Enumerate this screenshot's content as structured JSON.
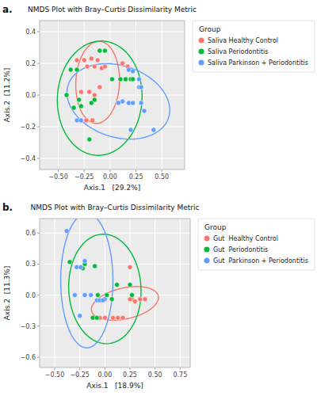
{
  "chart_data": [
    {
      "type": "scatter",
      "title": "NMDS Plot with Bray–Curtis Dissimilarity Metric",
      "annotation": "a.",
      "xlabel": "Axis.1   [29.2%]",
      "ylabel": "Axis.2  [11.2%]",
      "xlim": [
        -0.68,
        0.72
      ],
      "ylim": [
        -0.47,
        0.47
      ],
      "xticks": [
        {
          "value": -0.5,
          "label": "−0.50"
        },
        {
          "value": -0.25,
          "label": "−0.25"
        },
        {
          "value": 0.0,
          "label": "0.00"
        },
        {
          "value": 0.25,
          "label": "0.25"
        },
        {
          "value": 0.5,
          "label": "0.50"
        }
      ],
      "yticks": [
        {
          "value": -0.4,
          "label": "−0.4"
        },
        {
          "value": -0.2,
          "label": "−0.2"
        },
        {
          "value": 0.0,
          "label": "0.0"
        },
        {
          "value": 0.2,
          "label": "0.2"
        },
        {
          "value": 0.4,
          "label": "0.4"
        }
      ],
      "grid": true,
      "legend": "right",
      "legend_title": "Group",
      "series": [
        {
          "name": "Saliva Healthy Control",
          "color": "#F8766D",
          "x": [
            -0.32,
            -0.25,
            -0.18,
            -0.12,
            -0.22,
            -0.15,
            -0.08,
            -0.05,
            -0.28,
            -0.2,
            -0.15,
            -0.1,
            -0.17,
            -0.23,
            0.12,
            0.17
          ],
          "values": [
            0.22,
            0.22,
            0.23,
            0.22,
            0.18,
            0.18,
            0.17,
            0.18,
            0.02,
            0.02,
            0.0,
            0.05,
            -0.16,
            -0.16,
            0.2,
            0.18
          ],
          "ellipse": {
            "cx": -0.12,
            "cy": 0.08,
            "width": 0.42,
            "height": 0.52,
            "angle": -8
          }
        },
        {
          "name": "Saliva Periodontitis",
          "color": "#00BA38",
          "x": [
            -0.32,
            -0.38,
            -0.42,
            -0.3,
            -0.35,
            -0.28,
            -0.18,
            -0.1,
            -0.05,
            0.02,
            0.1,
            0.15,
            -0.2,
            0.2,
            0.22,
            -0.15
          ],
          "values": [
            0.16,
            0.16,
            0.0,
            -0.03,
            -0.08,
            -0.07,
            -0.05,
            0.28,
            0.28,
            0.1,
            0.1,
            0.1,
            -0.28,
            0.1,
            0.1,
            -0.03
          ],
          "ellipse": {
            "cx": -0.1,
            "cy": -0.02,
            "width": 0.82,
            "height": 0.72,
            "angle": 8
          }
        },
        {
          "name": "Saliva Parkinson + Periodontitis",
          "color": "#619CFF",
          "x": [
            -0.32,
            -0.28,
            0.18,
            0.22,
            0.28,
            0.18,
            0.22,
            0.3,
            0.33,
            0.2,
            0.42,
            0.12,
            0.08,
            0.28,
            0.3
          ],
          "values": [
            -0.16,
            -0.16,
            0.16,
            0.15,
            0.1,
            -0.05,
            -0.05,
            -0.05,
            -0.1,
            -0.22,
            -0.22,
            -0.04,
            -0.05,
            0.05,
            0.05
          ],
          "ellipse": {
            "cx": 0.08,
            "cy": -0.04,
            "width": 1.0,
            "height": 0.46,
            "angle": -8
          }
        }
      ]
    },
    {
      "type": "scatter",
      "title": "NMDS Plot with Bray–Curtis Dissimilarity Metric",
      "annotation": "b.",
      "xlabel": "Axis.1   [18.9%]",
      "ylabel": "Axis.2  [11.3%]",
      "xlim": [
        -0.65,
        0.85
      ],
      "ylim": [
        -0.7,
        0.74
      ],
      "xticks": [
        {
          "value": -0.5,
          "label": "−0.50"
        },
        {
          "value": -0.25,
          "label": "−0.25"
        },
        {
          "value": 0.0,
          "label": "0.00"
        },
        {
          "value": 0.25,
          "label": "0.25"
        },
        {
          "value": 0.5,
          "label": "0.50"
        },
        {
          "value": 0.75,
          "label": "0.75"
        }
      ],
      "yticks": [
        {
          "value": -0.6,
          "label": "−0.6"
        },
        {
          "value": -0.3,
          "label": "−0.3"
        },
        {
          "value": 0.0,
          "label": "0.0"
        },
        {
          "value": 0.3,
          "label": "0.3"
        },
        {
          "value": 0.6,
          "label": "0.6"
        }
      ],
      "grid": true,
      "legend": "right",
      "legend_title": "Group",
      "series": [
        {
          "name": "Gut  Healthy Control",
          "color": "#F8766D",
          "x": [
            -0.12,
            -0.05,
            0.0,
            0.08,
            0.25,
            0.27,
            0.3,
            0.35,
            0.4,
            0.25,
            0.13,
            0.18
          ],
          "values": [
            -0.22,
            -0.22,
            -0.22,
            -0.22,
            0.27,
            -0.04,
            -0.06,
            -0.04,
            -0.04,
            -0.04,
            -0.22,
            -0.22
          ],
          "ellipse": {
            "cx": 0.2,
            "cy": -0.08,
            "width": 0.68,
            "height": 0.3,
            "angle": 12
          }
        },
        {
          "name": "Gut  Periodontitis",
          "color": "#00BA38",
          "x": [
            -0.35,
            -0.2,
            -0.1,
            -0.07,
            -0.22,
            -0.12,
            -0.08,
            0.02,
            0.07,
            0.12,
            0.25,
            0.27
          ],
          "values": [
            0.32,
            0.3,
            0.28,
            0.0,
            0.26,
            -0.22,
            -0.22,
            0.0,
            -0.04,
            0.1,
            0.1,
            0.0
          ],
          "ellipse": {
            "cx": 0.0,
            "cy": 0.06,
            "width": 0.72,
            "height": 1.06,
            "angle": 3
          }
        },
        {
          "name": "Gut  Parkinson + Periodontitis",
          "color": "#619CFF",
          "x": [
            -0.38,
            -0.28,
            -0.24,
            -0.2,
            -0.25,
            -0.2,
            -0.14,
            -0.08,
            -0.05,
            0.0,
            -0.02,
            -0.3
          ],
          "values": [
            0.62,
            0.27,
            0.27,
            0.33,
            -0.2,
            0.0,
            0.0,
            -0.05,
            -0.05,
            -0.04,
            -0.05,
            0.0
          ],
          "ellipse": {
            "cx": -0.18,
            "cy": 0.14,
            "width": 0.52,
            "height": 1.3,
            "angle": 0
          }
        }
      ]
    }
  ]
}
